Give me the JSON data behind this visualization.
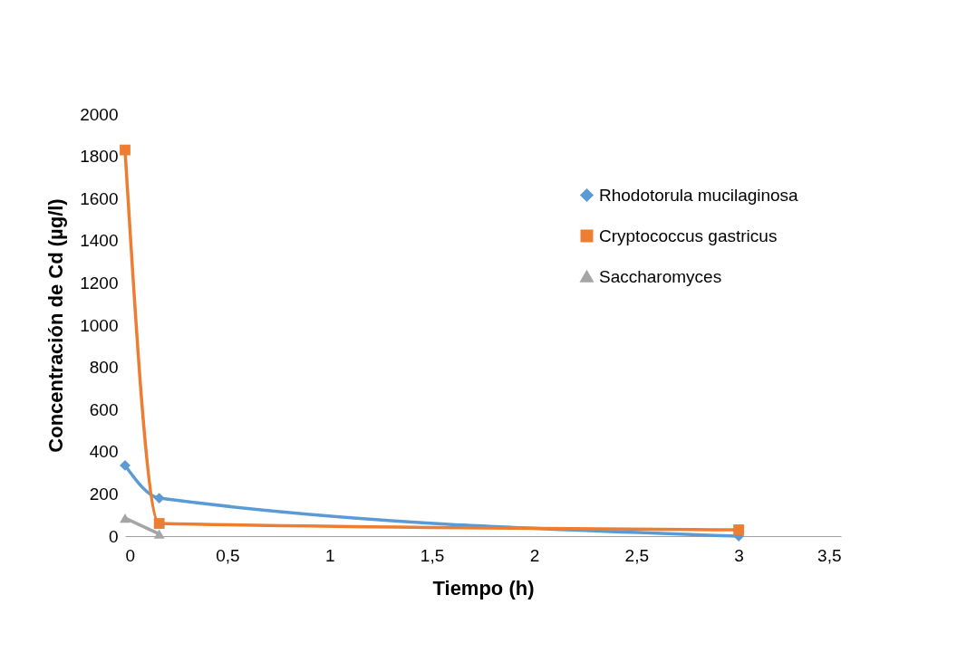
{
  "chart_data": {
    "type": "line",
    "xlabel": "Tiempo (h)",
    "ylabel": "Concentración de Cd (µg/l)",
    "xlim": [
      0,
      3.5
    ],
    "xticks": [
      0,
      {
        "value": 0.5,
        "label": "0,5"
      },
      1,
      {
        "value": 1.5,
        "label": "1,5"
      },
      2,
      {
        "value": 2.5,
        "label": "2,5"
      },
      3,
      {
        "value": 3.5,
        "label": "3,5"
      }
    ],
    "ylim": [
      0,
      2000
    ],
    "yticks": [
      0,
      200,
      400,
      600,
      800,
      1000,
      1200,
      1400,
      1600,
      1800,
      2000
    ],
    "grid": false,
    "legend": "right",
    "series": [
      {
        "name": "Rhodotorula mucilaginosa",
        "color": "#5b9bd5",
        "marker": "diamond",
        "x": [
          0,
          0.167,
          3
        ],
        "values": [
          335,
          180,
          0
        ]
      },
      {
        "name": "Cryptococcus gastricus",
        "color": "#ed7d31",
        "marker": "square",
        "x": [
          0,
          0.167,
          3
        ],
        "values": [
          1830,
          60,
          30
        ]
      },
      {
        "name": "Saccharomyces",
        "color": "#a5a5a5",
        "marker": "triangle",
        "x": [
          0,
          0.167
        ],
        "values": [
          85,
          10
        ]
      }
    ]
  }
}
